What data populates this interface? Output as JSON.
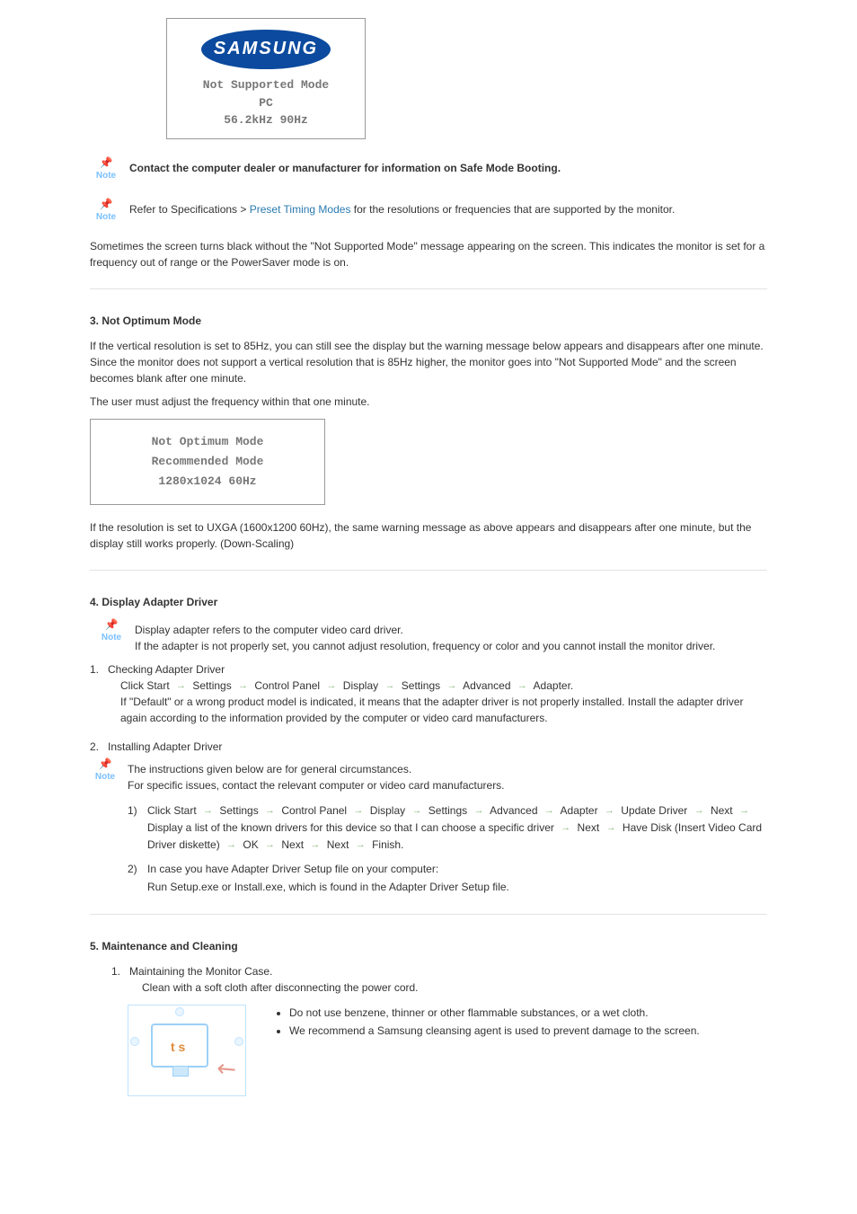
{
  "samsung_box": {
    "logo_text": "SAMSUNG",
    "line1": "Not Supported Mode",
    "line2": "PC",
    "line3": "56.2kHz 90Hz",
    "border_color": "#999999",
    "logo_bg": "#0b4a9e"
  },
  "note1_text": "Contact the computer dealer or manufacturer for information on Safe Mode Booting.",
  "note2_prefix": "Refer to Specifications > ",
  "note2_link": "Preset Timing Modes",
  "note2_suffix": " for the resolutions or frequencies that are supported by the monitor.",
  "note_label": "Note",
  "para_black_screen": "Sometimes the screen turns black without the \"Not Supported Mode\" message appearing on the screen. This indicates the monitor is set for a frequency out of range or the PowerSaver mode is on.",
  "section3": {
    "title": "3. Not Optimum Mode",
    "para1": "If the vertical resolution is set to 85Hz, you can still see the display but the warning message below appears and disappears after one minute. Since the monitor does not support a vertical resolution that is 85Hz higher, the monitor goes into \"Not Supported Mode\" and the screen becomes blank after one minute.",
    "para2": "The user must adjust the frequency within that one minute.",
    "box": {
      "line1": "Not Optimum Mode",
      "line2": "Recommended Mode",
      "line3": "1280x1024   60Hz"
    },
    "para3": "If the resolution is set to UXGA (1600x1200 60Hz), the same warning message as above appears and disappears after one minute, but the display still works properly. (Down-Scaling)"
  },
  "section4": {
    "title": "4. Display Adapter Driver",
    "note_line1": "Display adapter refers to the computer video card driver.",
    "note_line2": "If the adapter is not properly set, you cannot adjust resolution, frequency or color and you cannot install the monitor driver.",
    "item1_title": "Checking Adapter Driver",
    "item1_path": [
      "Click Start",
      "Settings",
      "Control Panel",
      "Display",
      "Settings",
      "Advanced",
      "Adapter."
    ],
    "item1_text": "If \"Default\" or a wrong product model is indicated, it means that the adapter driver is not properly installed. Install the adapter driver again according to the information provided by the computer or video card manufacturers.",
    "item2_title": "Installing Adapter Driver",
    "item2_note_line1": "The instructions given below are for general circumstances.",
    "item2_note_line2": "For specific issues, contact the relevant computer or video card manufacturers.",
    "item2_sub1_path_a": [
      "Click Start",
      "Settings",
      "Control Panel",
      "Display",
      "Settings",
      "Advanced",
      "Adapter",
      "Update Driver",
      "Next",
      "Display a list of the known drivers for this device so that I can choose a specific driver",
      "Next",
      "Have Disk (Insert Video Card Driver diskette)",
      "OK",
      "Next",
      "Next",
      "Finish."
    ],
    "item2_sub2_line1": "In case you have Adapter Driver Setup file on your computer:",
    "item2_sub2_line2": "Run Setup.exe or Install.exe, which is found in the Adapter Driver Setup file."
  },
  "section5": {
    "title": "5. Maintenance and Cleaning",
    "item1_title": "Maintaining the Monitor Case.",
    "item1_text": "Clean with a soft cloth after disconnecting the power cord.",
    "bullets": [
      "Do not use benzene, thinner or other flammable substances, or a wet cloth.",
      "We recommend a Samsung cleansing agent is used to prevent damage to the screen."
    ]
  },
  "colors": {
    "link": "#2a7ab0",
    "arrow": "#8ab87d",
    "separator": "#e3e3e3",
    "note_blue": "#7ac0ff"
  }
}
